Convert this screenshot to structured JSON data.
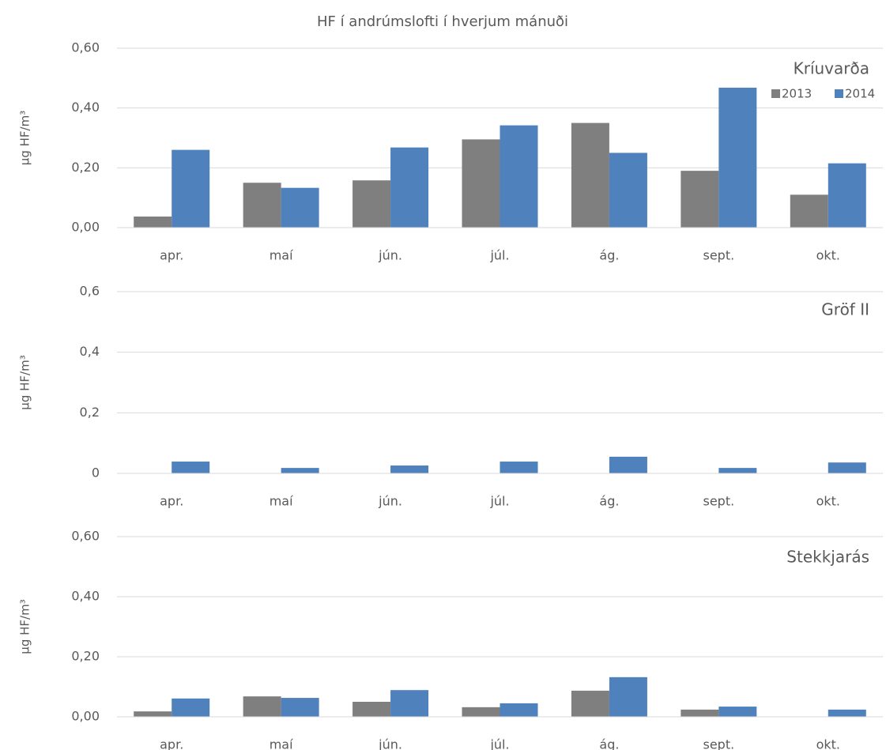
{
  "chart_data": [
    {
      "type": "bar",
      "title": "HF í andrúmslofti í hverjum mánuði",
      "subtitle": "Kríuvarða",
      "y_label": "µg HF/m³",
      "categories": [
        "apr.",
        "maí",
        "jún.",
        "júl.",
        "ág.",
        "sept.",
        "okt."
      ],
      "series": [
        {
          "name": "2013",
          "color": "#7f7f7f",
          "values": [
            0.037,
            0.15,
            0.158,
            0.295,
            0.35,
            0.19,
            0.11
          ]
        },
        {
          "name": "2014",
          "color": "#4f81bd",
          "values": [
            0.26,
            0.133,
            0.268,
            0.342,
            0.25,
            0.468,
            0.215
          ]
        }
      ],
      "ylim": [
        0,
        0.6
      ],
      "yticks": [
        {
          "value": 0,
          "label": "0,00"
        },
        {
          "value": 0.2,
          "label": "0,20"
        },
        {
          "value": 0.4,
          "label": "0,40"
        },
        {
          "value": 0.6,
          "label": "0,60"
        }
      ],
      "grid": true,
      "legend": "top-right"
    },
    {
      "type": "bar",
      "subtitle": "Gröf II",
      "y_label": "µg HF/m³",
      "categories": [
        "apr.",
        "maí",
        "jún.",
        "júl.",
        "ág.",
        "sept.",
        "okt."
      ],
      "series": [
        {
          "color": "#7f7f7f",
          "values": [
            null,
            null,
            null,
            null,
            null,
            null,
            null
          ]
        },
        {
          "color": "#4f81bd",
          "values": [
            0.039,
            0.018,
            0.026,
            0.039,
            0.055,
            0.018,
            0.036
          ]
        }
      ],
      "ylim": [
        0,
        0.6
      ],
      "yticks": [
        0,
        {
          "value": 0.2,
          "label": "0,2"
        },
        {
          "value": 0.4,
          "label": "0,4"
        },
        {
          "value": 0.6,
          "label": "0,6"
        }
      ],
      "grid": true
    },
    {
      "type": "bar",
      "subtitle": "Stekkjarás",
      "y_label": "µg HF/m³",
      "categories": [
        "apr.",
        "maí",
        "jún.",
        "júl.",
        "ág.",
        "sept.",
        "okt."
      ],
      "series": [
        {
          "color": "#7f7f7f",
          "values": [
            0.018,
            0.068,
            0.05,
            0.032,
            0.087,
            0.024,
            null
          ]
        },
        {
          "color": "#4f81bd",
          "values": [
            0.061,
            0.063,
            0.089,
            0.045,
            0.132,
            0.034,
            0.024
          ]
        }
      ],
      "ylim": [
        0,
        0.6
      ],
      "yticks": [
        {
          "value": 0,
          "label": "0,00"
        },
        {
          "value": 0.2,
          "label": "0,20"
        },
        {
          "value": 0.4,
          "label": "0,40"
        },
        {
          "value": 0.6,
          "label": "0,60"
        }
      ],
      "grid": true
    }
  ]
}
